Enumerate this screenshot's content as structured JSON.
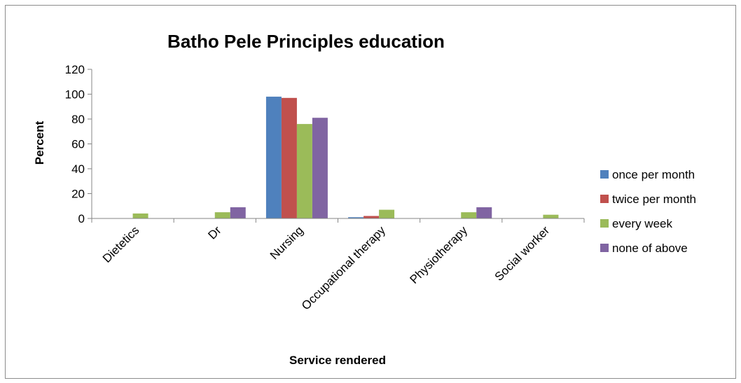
{
  "chart_data": {
    "type": "bar",
    "title": "Batho Pele Principles education",
    "xlabel": "Service rendered",
    "ylabel": "Percent",
    "ylim": [
      0,
      120
    ],
    "yticks": [
      0,
      20,
      40,
      60,
      80,
      100,
      120
    ],
    "categories": [
      "Dietetics",
      "Dr",
      "Nursing",
      "Occupational therapy",
      "Physiotherapy",
      "Social worker"
    ],
    "series": [
      {
        "name": "once per month",
        "color": "#4F81BD",
        "values": [
          0,
          0,
          98,
          1,
          0,
          0
        ]
      },
      {
        "name": "twice per month",
        "color": "#C0504D",
        "values": [
          0,
          0,
          97,
          2,
          0,
          0
        ]
      },
      {
        "name": "every week",
        "color": "#9BBB59",
        "values": [
          4,
          5,
          76,
          7,
          5,
          3
        ]
      },
      {
        "name": "none of above",
        "color": "#8064A2",
        "values": [
          0,
          9,
          81,
          0,
          9,
          0
        ]
      }
    ],
    "grid": false,
    "legend_position": "right"
  }
}
